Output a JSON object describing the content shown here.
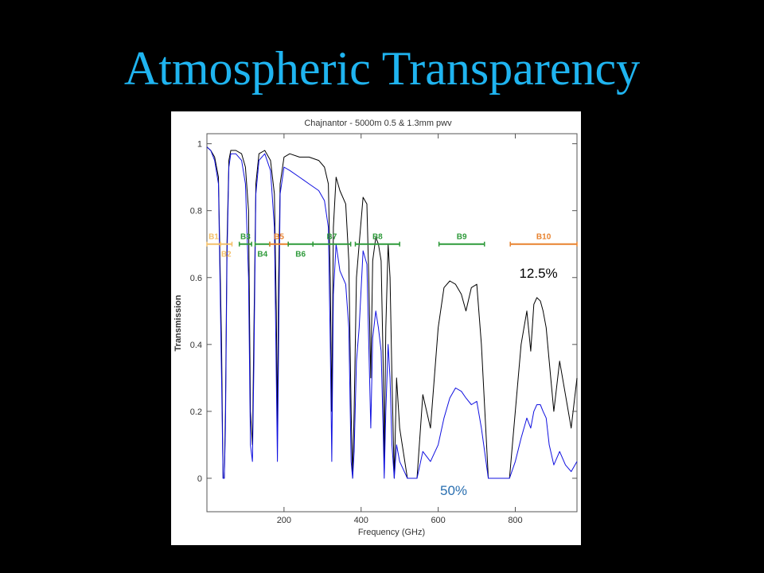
{
  "slide": {
    "title": "Atmospheric Transparency"
  },
  "chart_data": {
    "type": "line",
    "title": "Chajnantor - 5000m 0.5 & 1.3mm pwv",
    "xlabel": "Frequency (GHz)",
    "ylabel": "Transmission",
    "xlim": [
      0,
      960
    ],
    "ylim": [
      -0.1,
      1.03
    ],
    "x_ticks": [
      200,
      400,
      600,
      800
    ],
    "y_ticks": [
      0,
      0.2,
      0.4,
      0.6,
      0.8,
      1
    ],
    "y_tick_labels": [
      "0",
      "0.2",
      "0.4",
      "0.6",
      "0.8",
      "1"
    ],
    "grid": false,
    "series": [
      {
        "color": "#000000",
        "x": [
          0,
          10,
          20,
          30,
          38,
          42,
          45,
          48,
          52,
          57,
          62,
          75,
          90,
          100,
          108,
          113,
          118,
          122,
          127,
          135,
          150,
          165,
          175,
          180,
          183,
          186,
          190,
          200,
          215,
          240,
          265,
          290,
          305,
          315,
          320,
          324,
          328,
          335,
          345,
          360,
          368,
          374,
          378,
          382,
          388,
          395,
          405,
          415,
          420,
          425,
          430,
          438,
          445,
          452,
          457,
          460,
          464,
          470,
          475,
          480,
          486,
          492,
          500,
          520,
          545,
          560,
          580,
          600,
          615,
          630,
          645,
          660,
          672,
          686,
          700,
          712,
          730,
          760,
          785,
          800,
          815,
          830,
          840,
          848,
          856,
          865,
          872,
          880,
          888,
          900,
          915,
          930,
          945,
          960
        ],
        "y": [
          0.99,
          0.98,
          0.96,
          0.9,
          0.4,
          0,
          0,
          0.2,
          0.7,
          0.95,
          0.98,
          0.98,
          0.97,
          0.93,
          0.8,
          0.2,
          0.1,
          0.45,
          0.88,
          0.97,
          0.98,
          0.95,
          0.85,
          0.5,
          0.15,
          0.6,
          0.88,
          0.96,
          0.97,
          0.96,
          0.96,
          0.95,
          0.93,
          0.88,
          0.6,
          0.2,
          0.75,
          0.9,
          0.86,
          0.82,
          0.65,
          0.2,
          0,
          0.2,
          0.6,
          0.7,
          0.84,
          0.82,
          0.6,
          0.3,
          0.65,
          0.72,
          0.7,
          0.65,
          0.35,
          0.05,
          0.45,
          0.7,
          0.6,
          0.3,
          0,
          0.3,
          0.15,
          0,
          0,
          0.25,
          0.15,
          0.45,
          0.57,
          0.59,
          0.58,
          0.55,
          0.5,
          0.57,
          0.58,
          0.4,
          0,
          0,
          0,
          0.2,
          0.4,
          0.5,
          0.38,
          0.52,
          0.54,
          0.53,
          0.5,
          0.45,
          0.35,
          0.2,
          0.35,
          0.25,
          0.15,
          0.3
        ]
      },
      {
        "color": "#1010e0",
        "x": [
          0,
          10,
          20,
          30,
          38,
          42,
          45,
          48,
          52,
          57,
          62,
          75,
          90,
          100,
          108,
          113,
          118,
          122,
          127,
          135,
          150,
          165,
          175,
          180,
          183,
          186,
          190,
          200,
          215,
          240,
          265,
          290,
          305,
          315,
          320,
          324,
          328,
          335,
          345,
          360,
          368,
          374,
          378,
          382,
          388,
          395,
          405,
          415,
          420,
          425,
          430,
          438,
          445,
          452,
          457,
          460,
          464,
          470,
          475,
          480,
          486,
          492,
          500,
          520,
          545,
          560,
          580,
          600,
          615,
          630,
          645,
          660,
          672,
          686,
          700,
          712,
          730,
          760,
          785,
          800,
          815,
          830,
          840,
          848,
          856,
          865,
          872,
          880,
          888,
          900,
          915,
          930,
          945,
          960
        ],
        "y": [
          0.99,
          0.98,
          0.95,
          0.88,
          0.3,
          0,
          0,
          0.15,
          0.65,
          0.93,
          0.97,
          0.97,
          0.95,
          0.88,
          0.6,
          0.1,
          0.05,
          0.35,
          0.85,
          0.95,
          0.97,
          0.92,
          0.75,
          0.3,
          0.05,
          0.4,
          0.85,
          0.93,
          0.92,
          0.9,
          0.88,
          0.86,
          0.83,
          0.75,
          0.4,
          0.05,
          0.55,
          0.7,
          0.62,
          0.58,
          0.45,
          0.05,
          0,
          0.08,
          0.35,
          0.45,
          0.68,
          0.64,
          0.4,
          0.15,
          0.42,
          0.5,
          0.45,
          0.38,
          0.15,
          0,
          0.2,
          0.4,
          0.3,
          0.1,
          0,
          0.1,
          0.05,
          0,
          0,
          0.08,
          0.05,
          0.1,
          0.18,
          0.24,
          0.27,
          0.26,
          0.24,
          0.22,
          0.23,
          0.15,
          0,
          0,
          0,
          0.05,
          0.12,
          0.18,
          0.15,
          0.2,
          0.22,
          0.22,
          0.2,
          0.18,
          0.1,
          0.04,
          0.08,
          0.04,
          0.02,
          0.05
        ]
      }
    ],
    "bands": [
      {
        "name": "B1",
        "x0": 0,
        "x1": 35,
        "row": "top",
        "color": "#f4c06a"
      },
      {
        "name": "B2",
        "x0": 35,
        "x1": 65,
        "row": "bottom",
        "color": "#f4c06a"
      },
      {
        "name": "B3",
        "x0": 84,
        "x1": 116,
        "row": "top",
        "color": "#2e9a3a"
      },
      {
        "name": "B4",
        "x0": 125,
        "x1": 163,
        "row": "bottom",
        "color": "#2e9a3a"
      },
      {
        "name": "B5",
        "x0": 163,
        "x1": 211,
        "row": "top",
        "color": "#e8822e"
      },
      {
        "name": "B6",
        "x0": 211,
        "x1": 275,
        "row": "bottom",
        "color": "#2e9a3a"
      },
      {
        "name": "B7",
        "x0": 275,
        "x1": 373,
        "row": "top",
        "color": "#2e9a3a"
      },
      {
        "name": "B8",
        "x0": 385,
        "x1": 500,
        "row": "top",
        "color": "#2e9a3a"
      },
      {
        "name": "B9",
        "x0": 602,
        "x1": 720,
        "row": "top",
        "color": "#2e9a3a"
      },
      {
        "name": "B10",
        "x0": 787,
        "x1": 960,
        "row": "top",
        "color": "#e8822e"
      }
    ],
    "annotations": [
      {
        "text": "12.5%",
        "x": 860,
        "y": 0.6,
        "color": "#000000"
      },
      {
        "text": "50%",
        "x": 640,
        "y": -0.05,
        "color": "#2a6fb0"
      }
    ]
  }
}
